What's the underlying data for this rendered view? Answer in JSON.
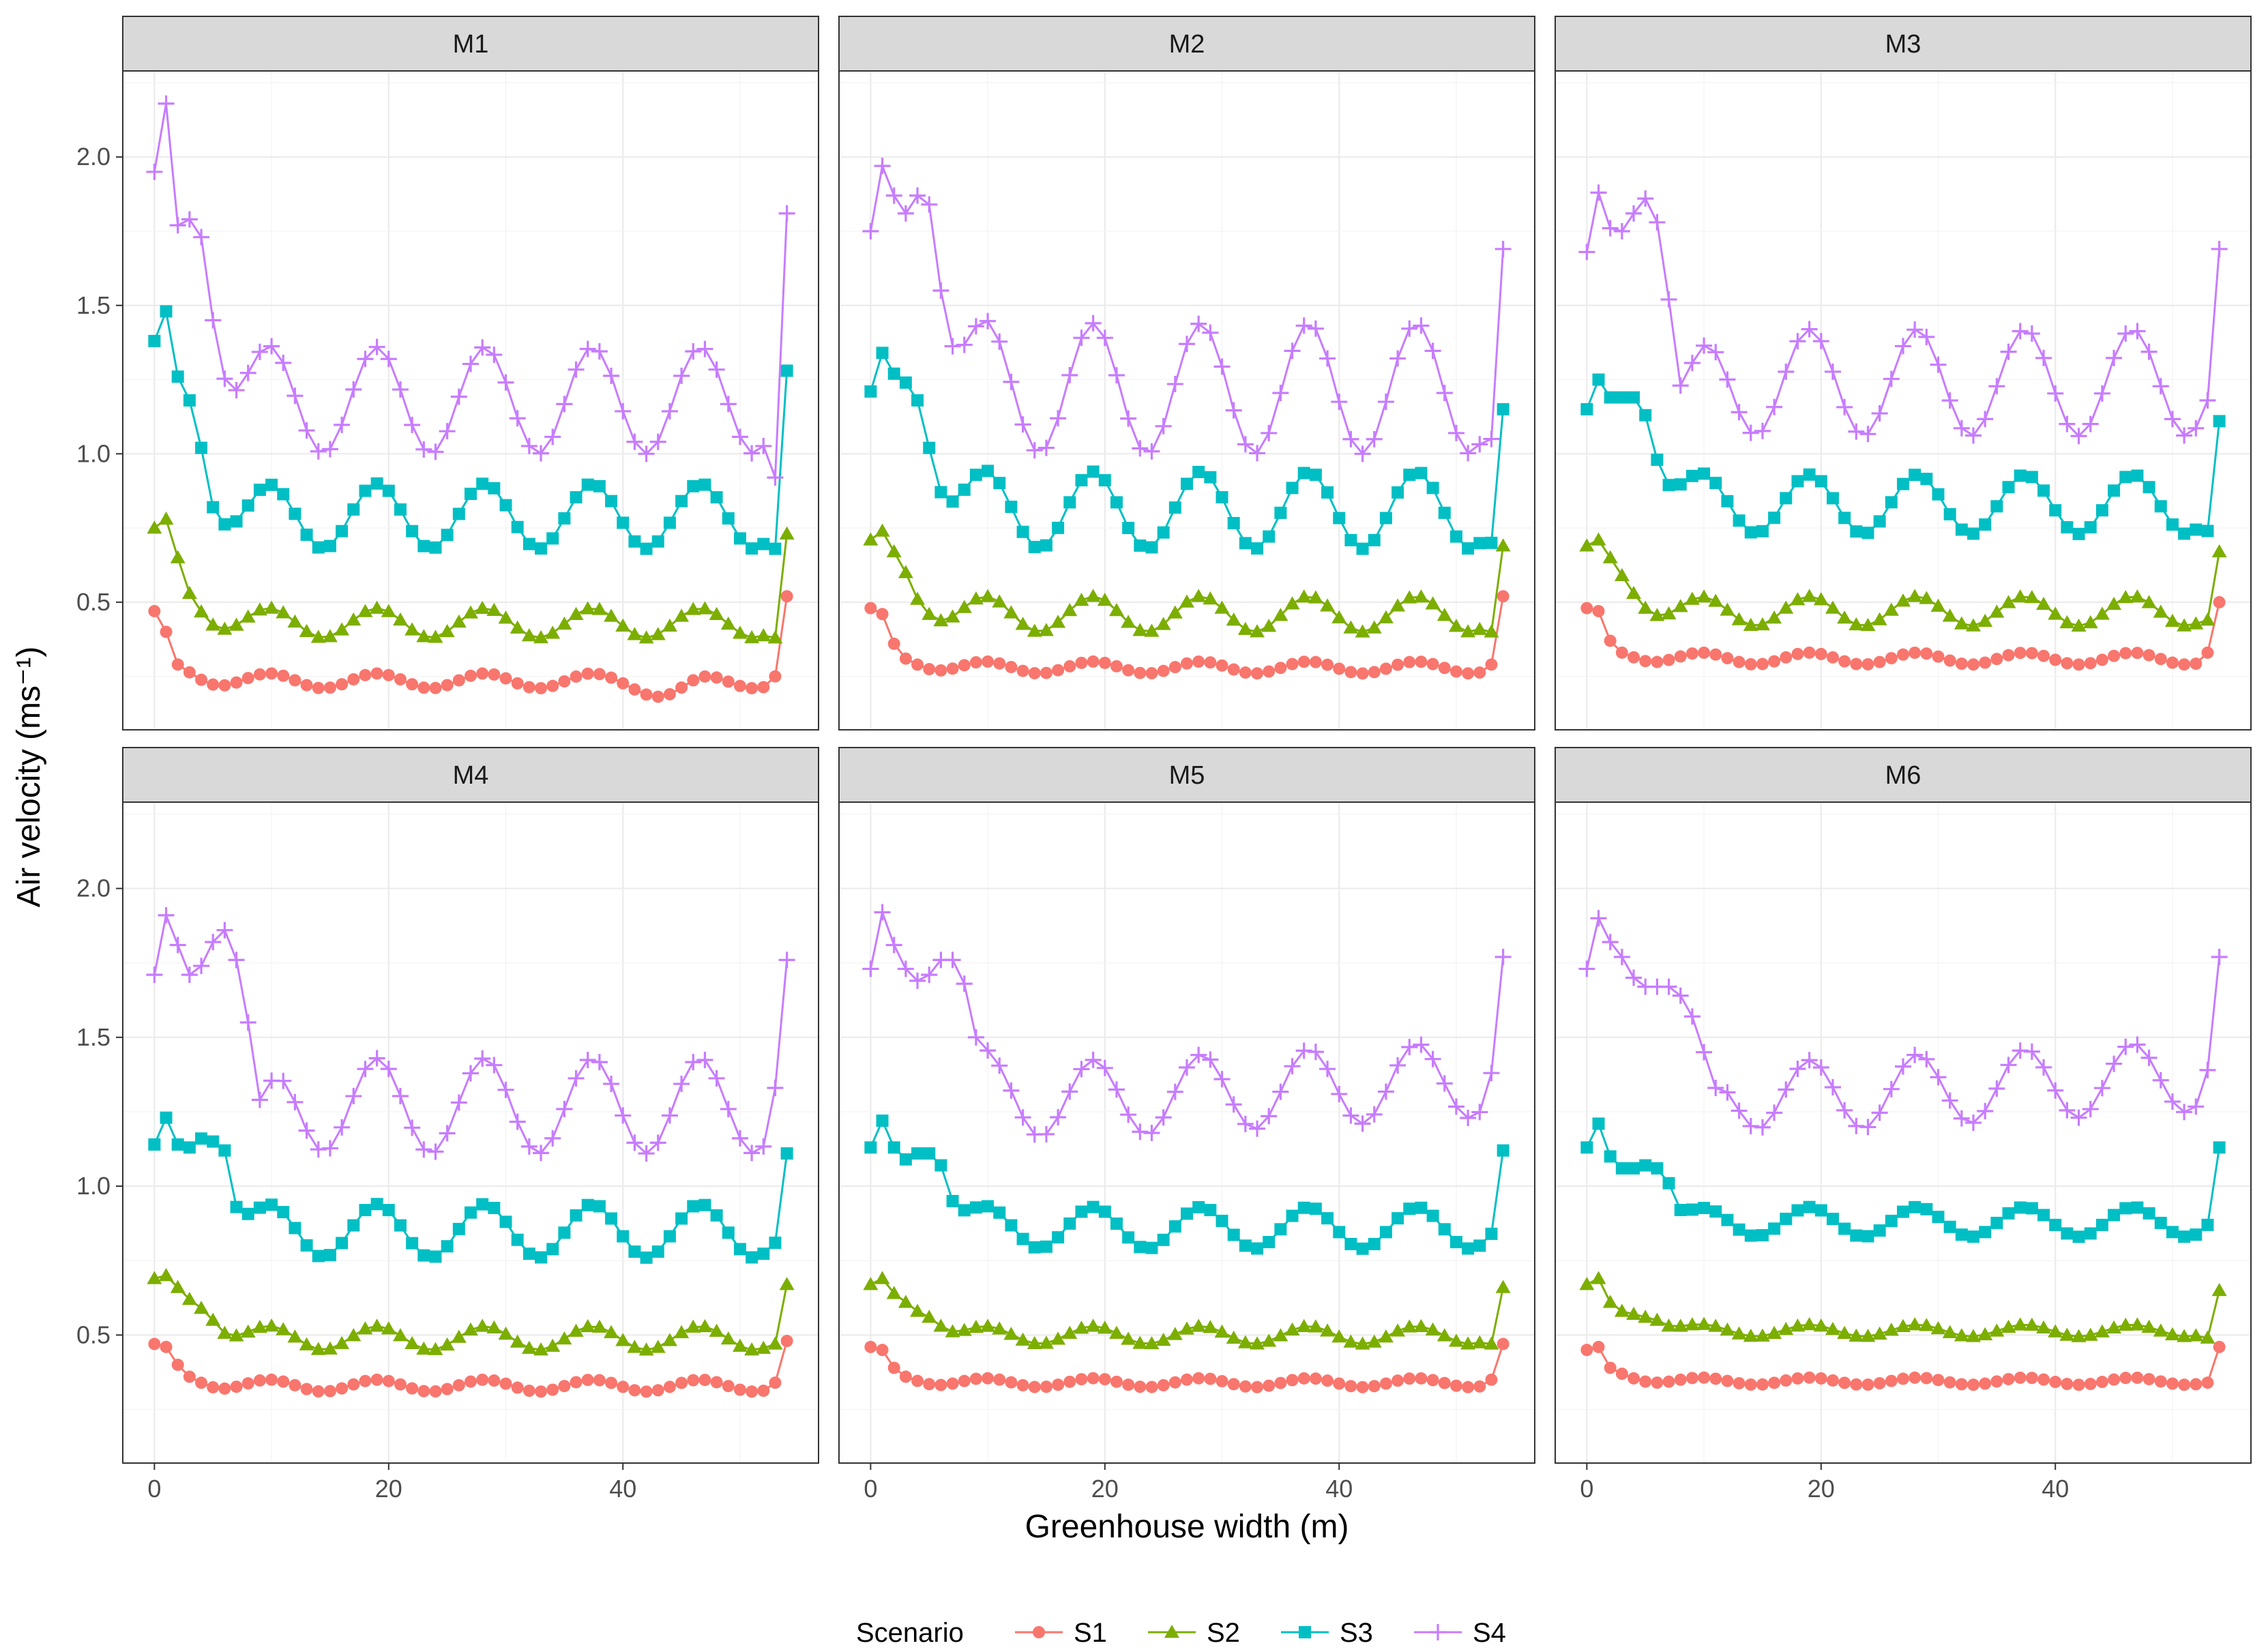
{
  "chart_data": {
    "type": "line",
    "xlabel": "Greenhouse width (m)",
    "ylabel": "Air velocity (ms⁻¹)",
    "xlim": [
      -2.7,
      56.7
    ],
    "ylim": [
      0.07,
      2.29
    ],
    "x_ticks": [
      0,
      20,
      40
    ],
    "y_ticks": [
      0.5,
      1.0,
      1.5,
      2.0
    ],
    "x_tick_labels": [
      "0",
      "20",
      "40"
    ],
    "y_tick_labels": [
      "0.5",
      "1.0",
      "1.5",
      "2.0"
    ],
    "grid": true,
    "legend": {
      "title": "Scenario",
      "position": "bottom",
      "entries": [
        {
          "name": "S1",
          "color": "#F8766D",
          "shape": "circle"
        },
        {
          "name": "S2",
          "color": "#7CAE00",
          "shape": "triangle"
        },
        {
          "name": "S3",
          "color": "#00BFC4",
          "shape": "square"
        },
        {
          "name": "S4",
          "color": "#C77CFF",
          "shape": "plus"
        }
      ]
    },
    "panels": [
      {
        "title": "M1",
        "series": [
          {
            "name": "S1",
            "start": [
              0.47,
              0.4,
              0.29
            ],
            "end": [
              0.25,
              0.52
            ],
            "mid_base": 0.235,
            "mid_amp": 0.025,
            "trend": 0,
            "decay_x": 4,
            "dip_at": 44,
            "dip_depth": 0.04
          },
          {
            "name": "S2",
            "start": [
              0.75,
              0.78,
              0.65,
              0.53
            ],
            "end": [
              0.38,
              0.73
            ],
            "mid_base": 0.43,
            "mid_amp": 0.05,
            "trend": 0,
            "decay_x": 6
          },
          {
            "name": "S3",
            "start": [
              1.38,
              1.48,
              1.26,
              1.18,
              1.02,
              0.82
            ],
            "end": [
              0.68,
              1.28
            ],
            "mid_base": 0.79,
            "mid_amp": 0.11,
            "trend": 0,
            "decay_x": 7
          },
          {
            "name": "S4",
            "start": [
              1.95,
              2.18,
              1.77,
              1.79,
              1.73,
              1.45
            ],
            "end": [
              0.92,
              1.81
            ],
            "mid_base": 1.18,
            "mid_amp": 0.18,
            "trend": 0,
            "decay_x": 8
          }
        ]
      },
      {
        "title": "M2",
        "series": [
          {
            "name": "S1",
            "start": [
              0.48,
              0.46,
              0.36,
              0.31
            ],
            "end": [
              0.29,
              0.52
            ],
            "mid_base": 0.28,
            "mid_amp": 0.02,
            "trend": 0,
            "decay_x": 5
          },
          {
            "name": "S2",
            "start": [
              0.71,
              0.74,
              0.67,
              0.6,
              0.51
            ],
            "end": [
              0.4,
              0.69
            ],
            "mid_base": 0.46,
            "mid_amp": 0.06,
            "trend": 0,
            "decay_x": 7
          },
          {
            "name": "S3",
            "start": [
              1.21,
              1.34,
              1.27,
              1.24,
              1.18,
              1.02
            ],
            "end": [
              0.7,
              1.15
            ],
            "mid_base": 0.81,
            "mid_amp": 0.13,
            "trend": 0,
            "decay_x": 7
          },
          {
            "name": "S4",
            "start": [
              1.75,
              1.97,
              1.87,
              1.81,
              1.87,
              1.84,
              1.55
            ],
            "end": [
              1.05,
              1.69
            ],
            "mid_base": 1.22,
            "mid_amp": 0.22,
            "trend": 0,
            "decay_x": 9
          }
        ]
      },
      {
        "title": "M3",
        "series": [
          {
            "name": "S1",
            "start": [
              0.48,
              0.47,
              0.37,
              0.33
            ],
            "end": [
              0.33,
              0.5
            ],
            "mid_base": 0.31,
            "mid_amp": 0.02,
            "trend": 0,
            "decay_x": 5
          },
          {
            "name": "S2",
            "start": [
              0.69,
              0.71,
              0.65,
              0.59,
              0.53,
              0.48
            ],
            "end": [
              0.44,
              0.67
            ],
            "mid_base": 0.47,
            "mid_amp": 0.05,
            "trend": 0,
            "decay_x": 7
          },
          {
            "name": "S3",
            "start": [
              1.15,
              1.25,
              1.19,
              1.19,
              1.19,
              1.13,
              0.98
            ],
            "end": [
              0.74,
              1.11
            ],
            "mid_base": 0.83,
            "mid_amp": 0.1,
            "trend": 0,
            "decay_x": 9
          },
          {
            "name": "S4",
            "start": [
              1.68,
              1.88,
              1.76,
              1.75,
              1.81,
              1.86,
              1.78,
              1.52,
              1.23
            ],
            "end": [
              1.18,
              1.69
            ],
            "mid_base": 1.24,
            "mid_amp": 0.18,
            "trend": 0,
            "decay_x": 10
          }
        ]
      },
      {
        "title": "M4",
        "series": [
          {
            "name": "S1",
            "start": [
              0.47,
              0.46,
              0.4,
              0.36
            ],
            "end": [
              0.34,
              0.48
            ],
            "mid_base": 0.33,
            "mid_amp": 0.02,
            "trend": 0,
            "decay_x": 5
          },
          {
            "name": "S2",
            "start": [
              0.69,
              0.7,
              0.66,
              0.62,
              0.59,
              0.55
            ],
            "end": [
              0.47,
              0.67
            ],
            "mid_base": 0.49,
            "mid_amp": 0.04,
            "trend": 0,
            "decay_x": 8
          },
          {
            "name": "S3",
            "start": [
              1.14,
              1.23,
              1.14,
              1.13,
              1.16,
              1.15,
              1.12,
              0.93
            ],
            "end": [
              0.81,
              1.11
            ],
            "mid_base": 0.85,
            "mid_amp": 0.09,
            "trend": 0,
            "decay_x": 9
          },
          {
            "name": "S4",
            "start": [
              1.71,
              1.91,
              1.81,
              1.71,
              1.74,
              1.82,
              1.86,
              1.76,
              1.55,
              1.29
            ],
            "end": [
              1.33,
              1.76
            ],
            "mid_base": 1.27,
            "mid_amp": 0.16,
            "trend": 0,
            "decay_x": 11
          }
        ]
      },
      {
        "title": "M5",
        "series": [
          {
            "name": "S1",
            "start": [
              0.46,
              0.45,
              0.39,
              0.36
            ],
            "end": [
              0.35,
              0.47
            ],
            "mid_base": 0.34,
            "mid_amp": 0.015,
            "trend": 0,
            "decay_x": 5
          },
          {
            "name": "S2",
            "start": [
              0.67,
              0.69,
              0.64,
              0.61,
              0.58,
              0.56,
              0.53
            ],
            "end": [
              0.47,
              0.66
            ],
            "mid_base": 0.5,
            "mid_amp": 0.03,
            "trend": 0,
            "decay_x": 8
          },
          {
            "name": "S3",
            "start": [
              1.13,
              1.22,
              1.13,
              1.09,
              1.11,
              1.11,
              1.07,
              0.95
            ],
            "end": [
              0.84,
              1.12
            ],
            "mid_base": 0.86,
            "mid_amp": 0.07,
            "trend": 0,
            "decay_x": 10
          },
          {
            "name": "S4",
            "start": [
              1.73,
              1.92,
              1.81,
              1.73,
              1.69,
              1.71,
              1.76,
              1.76,
              1.68,
              1.5
            ],
            "end": [
              1.38,
              1.77
            ],
            "mid_base": 1.31,
            "mid_amp": 0.13,
            "trend": 0.002,
            "decay_x": 12
          }
        ]
      },
      {
        "title": "M6",
        "series": [
          {
            "name": "S1",
            "start": [
              0.45,
              0.46,
              0.39,
              0.37
            ],
            "end": [
              0.34,
              0.46
            ],
            "mid_base": 0.345,
            "mid_amp": 0.012,
            "trend": 0,
            "decay_x": 5
          },
          {
            "name": "S2",
            "start": [
              0.67,
              0.69,
              0.61,
              0.58,
              0.57,
              0.56,
              0.55
            ],
            "end": [
              0.49,
              0.65
            ],
            "mid_base": 0.515,
            "mid_amp": 0.02,
            "trend": 0,
            "decay_x": 8
          },
          {
            "name": "S3",
            "start": [
              1.13,
              1.21,
              1.1,
              1.06,
              1.06,
              1.07,
              1.06,
              1.01,
              0.92
            ],
            "end": [
              0.87,
              1.13
            ],
            "mid_base": 0.88,
            "mid_amp": 0.05,
            "trend": 0,
            "decay_x": 11
          },
          {
            "name": "S4",
            "start": [
              1.73,
              1.9,
              1.82,
              1.77,
              1.7,
              1.67,
              1.67,
              1.67,
              1.64,
              1.57,
              1.45,
              1.33
            ],
            "end": [
              1.39,
              1.77
            ],
            "mid_base": 1.32,
            "mid_amp": 0.12,
            "trend": 0.002,
            "decay_x": 13
          }
        ]
      }
    ]
  }
}
